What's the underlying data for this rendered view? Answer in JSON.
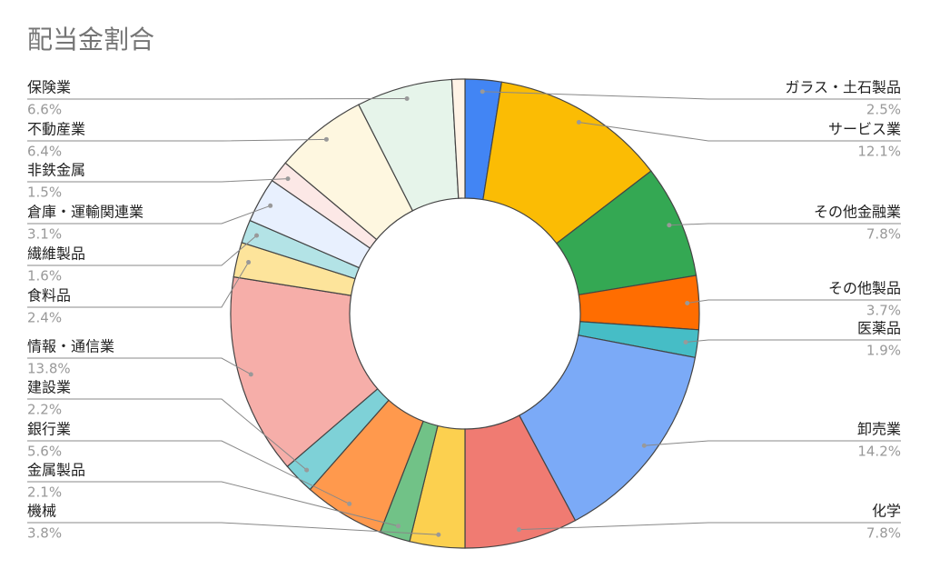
{
  "chart_data": {
    "type": "donut",
    "title": "配当金割合",
    "categories": [
      "ガラス・土石製品",
      "サービス業",
      "その他金融業",
      "その他製品",
      "医薬品",
      "卸売業",
      "化学",
      "機械",
      "金属製品",
      "銀行業",
      "建設業",
      "情報・通信業",
      "食料品",
      "繊維製品",
      "倉庫・運輸関連業",
      "非鉄金属",
      "不動産業",
      "保険業",
      null
    ],
    "values": [
      2.5,
      12.1,
      7.8,
      3.7,
      1.9,
      14.2,
      7.8,
      3.8,
      2.1,
      5.6,
      2.2,
      13.8,
      2.4,
      1.6,
      3.1,
      1.5,
      6.4,
      6.6,
      0.9
    ],
    "value_labels": [
      "2.5%",
      "12.1%",
      "7.8%",
      "3.7%",
      "1.9%",
      "14.2%",
      "7.8%",
      "3.8%",
      "2.1%",
      "5.6%",
      "2.2%",
      "13.8%",
      "2.4%",
      "1.6%",
      "3.1%",
      "1.5%",
      "6.4%",
      "6.6%",
      null
    ],
    "colors": [
      "#4285f4",
      "#fbbc04",
      "#34a853",
      "#ff6d01",
      "#46bdc6",
      "#7baaf7",
      "#f07b72",
      "#fcd04f",
      "#71c287",
      "#ff994d",
      "#7ed1d7",
      "#f6aea9",
      "#fde49b",
      "#b3e3e6",
      "#e8f0fe",
      "#fce8e6",
      "#fef7e0",
      "#e6f4ea",
      "#fff3e6"
    ]
  }
}
